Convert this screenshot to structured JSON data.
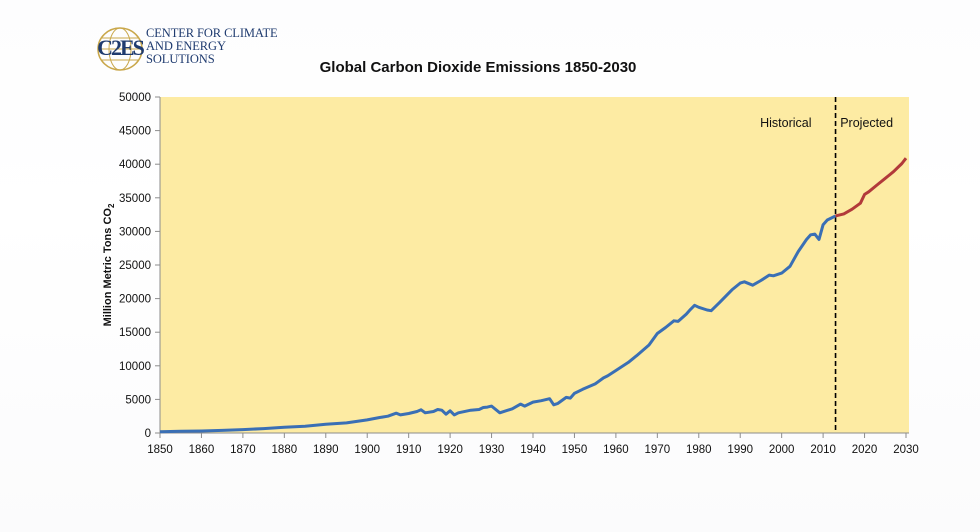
{
  "logo": {
    "mark": "C2ES",
    "line1": "CENTER FOR CLIMATE",
    "line2": "AND ENERGY SOLUTIONS"
  },
  "colors": {
    "plot_background": "#fdeba3",
    "historical_line": "#3a6fb5",
    "projected_line": "#b23a3a",
    "divider": "#000000",
    "axis": "#8c8c8c"
  },
  "chart_data": {
    "type": "line",
    "title": "Global Carbon Dioxide Emissions 1850-2030",
    "xlabel": "",
    "ylabel": "Million Metric Tons CO",
    "ylabel_subscript": "2",
    "xlim": [
      1850,
      2030
    ],
    "ylim": [
      0,
      50000
    ],
    "x_ticks": [
      "1850",
      "1860",
      "1870",
      "1880",
      "1890",
      "1900",
      "1910",
      "1920",
      "1930",
      "1940",
      "1950",
      "1960",
      "1970",
      "1980",
      "1990",
      "2000",
      "2010",
      "2020",
      "2030"
    ],
    "y_ticks": [
      "0",
      "5000",
      "10000",
      "15000",
      "20000",
      "25000",
      "30000",
      "35000",
      "40000",
      "45000",
      "50000"
    ],
    "grid": false,
    "legend": "none",
    "divider_year": 2013,
    "annotations": [
      {
        "text": "Historical",
        "x": 2001,
        "y": 45500
      },
      {
        "text": "Projected",
        "x": 2020.5,
        "y": 45500
      }
    ],
    "series": [
      {
        "name": "Historical",
        "x": [
          1850,
          1855,
          1860,
          1865,
          1870,
          1875,
          1880,
          1885,
          1890,
          1895,
          1900,
          1903,
          1905,
          1907,
          1908,
          1910,
          1912,
          1913,
          1914,
          1916,
          1917,
          1918,
          1919,
          1920,
          1921,
          1922,
          1925,
          1927,
          1928,
          1929,
          1930,
          1932,
          1935,
          1937,
          1938,
          1940,
          1942,
          1944,
          1945,
          1946,
          1948,
          1949,
          1950,
          1952,
          1955,
          1957,
          1958,
          1960,
          1963,
          1965,
          1968,
          1970,
          1972,
          1974,
          1975,
          1977,
          1978,
          1979,
          1980,
          1982,
          1983,
          1985,
          1988,
          1990,
          1991,
          1993,
          1995,
          1997,
          1998,
          2000,
          2002,
          2004,
          2006,
          2007,
          2008,
          2009,
          2010,
          2011,
          2012,
          2013
        ],
        "values": [
          200,
          260,
          300,
          380,
          500,
          650,
          850,
          1000,
          1300,
          1500,
          1950,
          2300,
          2500,
          2950,
          2700,
          2900,
          3200,
          3450,
          3000,
          3200,
          3500,
          3400,
          2800,
          3300,
          2700,
          3000,
          3400,
          3500,
          3800,
          3850,
          4000,
          3000,
          3600,
          4300,
          4000,
          4600,
          4800,
          5100,
          4200,
          4400,
          5300,
          5200,
          5900,
          6500,
          7300,
          8200,
          8500,
          9300,
          10500,
          11500,
          13100,
          14800,
          15700,
          16700,
          16600,
          17700,
          18400,
          19000,
          18700,
          18300,
          18200,
          19400,
          21300,
          22300,
          22500,
          22000,
          22700,
          23500,
          23400,
          23800,
          24800,
          27000,
          28800,
          29500,
          29600,
          28800,
          31000,
          31700,
          32000,
          32300
        ]
      },
      {
        "name": "Projected",
        "x": [
          2013,
          2015,
          2017,
          2019,
          2020,
          2021,
          2023,
          2025,
          2027,
          2029,
          2030
        ],
        "values": [
          32300,
          32600,
          33300,
          34200,
          35500,
          35900,
          36900,
          37900,
          38900,
          40100,
          40900
        ]
      }
    ]
  }
}
